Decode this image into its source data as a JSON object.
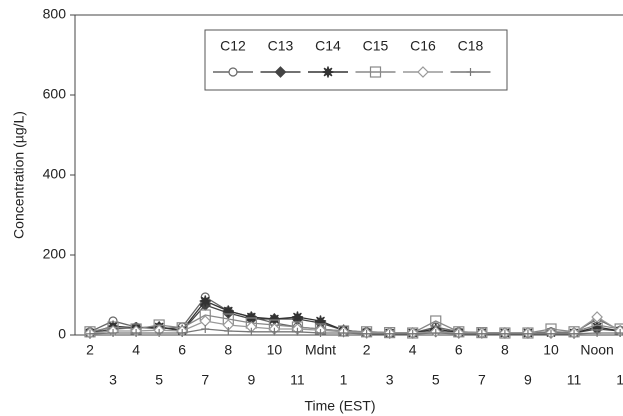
{
  "chart_data": {
    "type": "line",
    "x_label": "Time (EST)",
    "y_label": "Concentration (µg/L)",
    "categories": [
      "2",
      "3",
      "4",
      "5",
      "6",
      "7",
      "8",
      "9",
      "10",
      "11",
      "Mdnt",
      "1",
      "2",
      "3",
      "4",
      "5",
      "6",
      "7",
      "8",
      "9",
      "10",
      "11",
      "Noon",
      "1"
    ],
    "ylim": [
      0,
      800
    ],
    "yticks": [
      0,
      200,
      400,
      600,
      800
    ],
    "series": [
      {
        "name": "C12",
        "color": "#666666",
        "marker": "circle",
        "values": [
          8,
          35,
          20,
          15,
          20,
          95,
          60,
          45,
          30,
          20,
          15,
          10,
          8,
          6,
          5,
          20,
          8,
          6,
          5,
          5,
          8,
          6,
          40,
          12
        ]
      },
      {
        "name": "C13",
        "color": "#444444",
        "marker": "diamond-filled",
        "values": [
          5,
          15,
          18,
          20,
          10,
          75,
          55,
          40,
          40,
          40,
          30,
          12,
          6,
          5,
          5,
          10,
          5,
          5,
          5,
          5,
          5,
          5,
          15,
          10
        ]
      },
      {
        "name": "C14",
        "color": "#333333",
        "marker": "star",
        "values": [
          5,
          22,
          18,
          20,
          12,
          85,
          60,
          45,
          40,
          45,
          35,
          12,
          6,
          5,
          5,
          15,
          6,
          6,
          5,
          5,
          6,
          5,
          20,
          10
        ]
      },
      {
        "name": "C15",
        "color": "#888888",
        "marker": "square",
        "values": [
          8,
          20,
          15,
          25,
          18,
          50,
          40,
          30,
          25,
          20,
          15,
          10,
          8,
          6,
          5,
          35,
          8,
          6,
          5,
          5,
          15,
          8,
          25,
          15
        ]
      },
      {
        "name": "C16",
        "color": "#999999",
        "marker": "diamond",
        "values": [
          5,
          10,
          10,
          12,
          10,
          35,
          25,
          20,
          15,
          15,
          12,
          8,
          5,
          5,
          5,
          8,
          5,
          5,
          5,
          5,
          5,
          5,
          45,
          10
        ]
      },
      {
        "name": "C18",
        "color": "#777777",
        "marker": "plus",
        "values": [
          3,
          5,
          5,
          5,
          5,
          15,
          10,
          8,
          8,
          8,
          5,
          5,
          3,
          3,
          3,
          5,
          3,
          3,
          3,
          3,
          3,
          3,
          5,
          5
        ]
      }
    ]
  }
}
